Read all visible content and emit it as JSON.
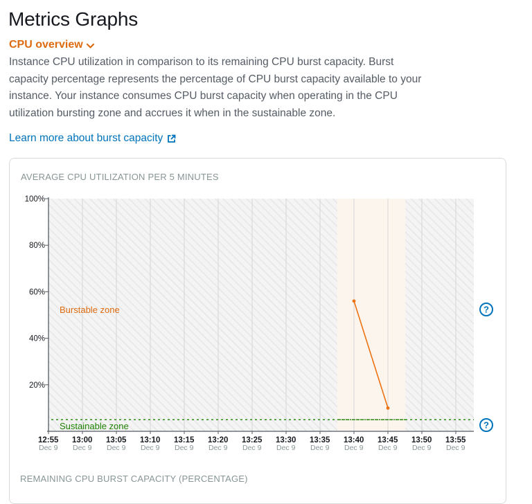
{
  "page": {
    "title": "Metrics Graphs"
  },
  "section": {
    "label": "CPU overview"
  },
  "description": "Instance CPU utilization in comparison to its remaining CPU burst capacity. Burst capacity percentage represents the percentage of CPU burst capacity available to your instance. Your instance consumes CPU burst capacity when operating in the CPU utilization bursting zone and accrues it when in the sustainable zone.",
  "learn_more": {
    "label": "Learn more about burst capacity",
    "icon": "external-link-icon"
  },
  "panel": {
    "title": "AVERAGE CPU UTILIZATION PER 5 MINUTES",
    "burstable_label": "Burstable zone",
    "sustainable_label": "Sustainable zone"
  },
  "next_panel": {
    "title": "REMAINING CPU BURST CAPACITY (PERCENTAGE)"
  },
  "colors": {
    "accent": "#dd6b10",
    "link": "#0073bb",
    "sustainable": "#1d8102",
    "line": "#ec7211",
    "highlight": "#fcf5ee"
  },
  "chart_data": {
    "type": "line",
    "title": "AVERAGE CPU UTILIZATION PER 5 MINUTES",
    "categories": [
      "12:55",
      "13:00",
      "13:05",
      "13:10",
      "13:15",
      "13:20",
      "13:25",
      "13:30",
      "13:35",
      "13:40",
      "13:45",
      "13:50",
      "13:55"
    ],
    "date_labels": [
      "Dec 9",
      "Dec 9",
      "Dec 9",
      "Dec 9",
      "Dec 9",
      "Dec 9",
      "Dec 9",
      "Dec 9",
      "Dec 9",
      "Dec 9",
      "Dec 9",
      "Dec 9",
      "Dec 9"
    ],
    "y_ticks": [
      "100%",
      "80%",
      "60%",
      "40%",
      "20%"
    ],
    "y_tick_values": [
      100,
      80,
      60,
      40,
      20
    ],
    "ylim": [
      0,
      100
    ],
    "sustainable_baseline": 5,
    "series": [
      {
        "points": [
          {
            "x": "13:40",
            "y": 56
          },
          {
            "x": "13:45",
            "y": 10
          }
        ]
      }
    ],
    "highlight_range": [
      "13:40",
      "13:45"
    ],
    "grid": true
  }
}
